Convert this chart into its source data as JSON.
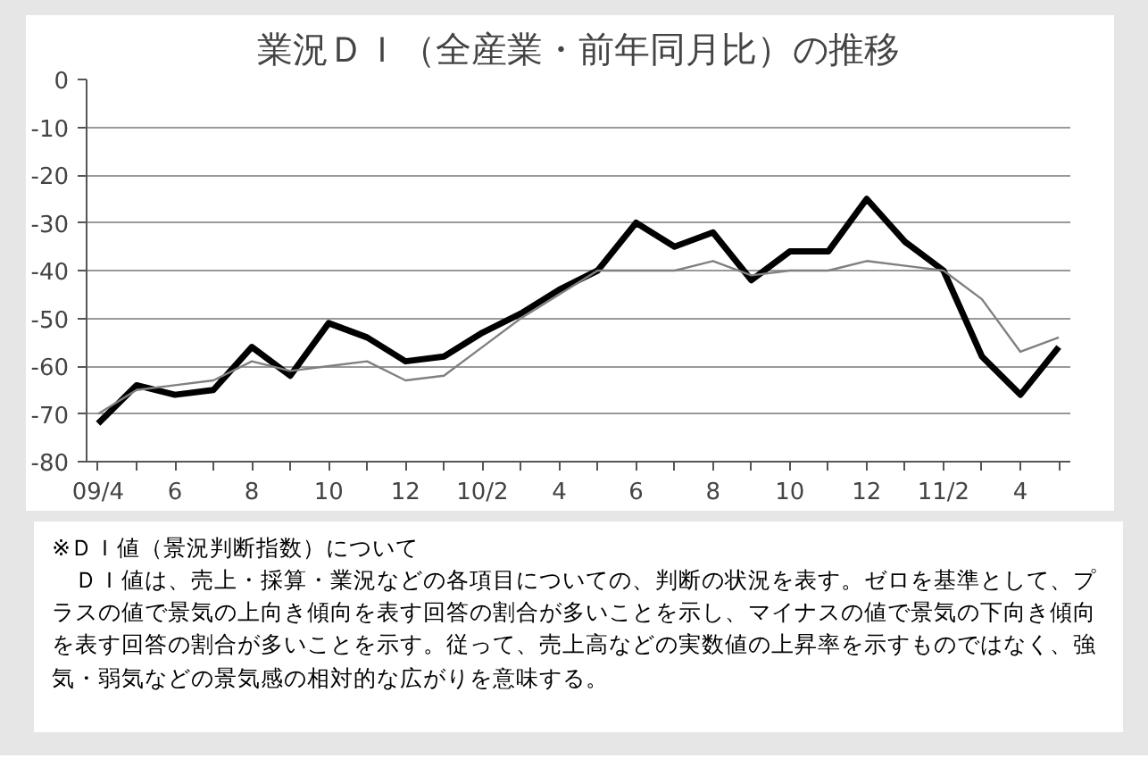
{
  "chart_data": {
    "type": "line",
    "title": "業況ＤＩ（全産業・前年同月比）の推移",
    "categories": [
      "09/4",
      null,
      "6",
      null,
      "8",
      null,
      "10",
      null,
      "12",
      null,
      "10/2",
      null,
      "4",
      null,
      "6",
      null,
      "8",
      null,
      "10",
      null,
      "12",
      null,
      "11/2",
      null,
      "4",
      null
    ],
    "series": [
      {
        "color": "#000000",
        "values": [
          -72,
          -64,
          -66,
          -65,
          -56,
          -62,
          -51,
          -54,
          -59,
          -58,
          -53,
          -49,
          -44,
          -40,
          -30,
          -35,
          -32,
          -42,
          -36,
          -36,
          -25,
          -34,
          -40,
          -58,
          -66,
          -56
        ]
      },
      {
        "color": "#808080",
        "values": [
          -70,
          -65,
          -64,
          -63,
          -59,
          -61,
          -60,
          -59,
          -63,
          -62,
          -56,
          -50,
          -45,
          -40,
          -40,
          -40,
          -38,
          -41,
          -40,
          -40,
          -38,
          -39,
          -40,
          -46,
          -57,
          -54
        ]
      }
    ],
    "ylim": [
      -80,
      0
    ],
    "yticks": [
      0,
      -10,
      -20,
      -30,
      -40,
      -50,
      -60,
      -70,
      -80
    ],
    "grid": "y",
    "marker": "none",
    "line_style": "solid",
    "annotations": [
      "※ＤＩ値（景況判断指数）について",
      "　ＤＩ値は、売上・採算・業況などの各項目についての、判断の状況を表す。ゼロを基準として、プラスの値で景気の上向き傾向を表す回答の割合が多いことを示し、マイナスの値で景気の下向き傾向を表す回答の割合が多いことを示す。従って、売上高などの実数値の上昇率を示すものではなく、強気・弱気などの景気感の相対的な広がりを意味する。"
    ]
  }
}
